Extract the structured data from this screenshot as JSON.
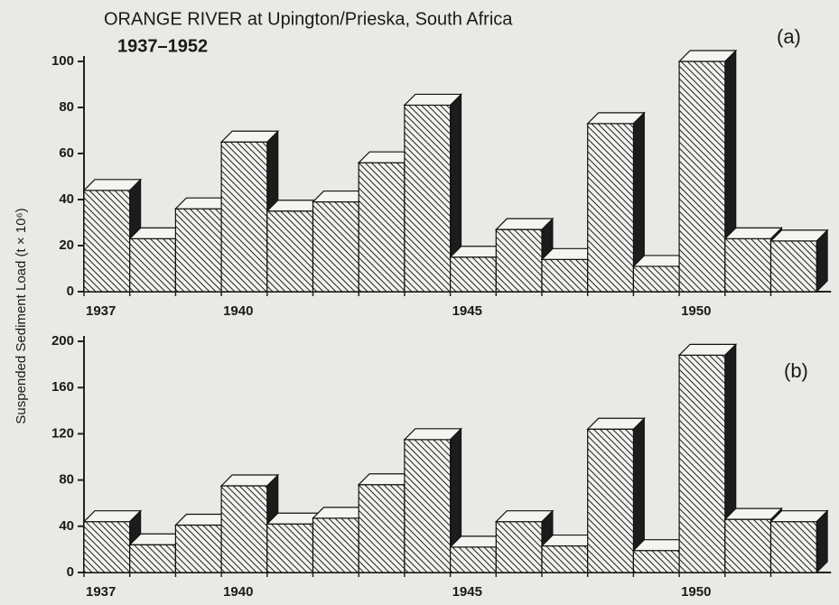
{
  "chart_data": [
    {
      "type": "bar",
      "title": "ORANGE RIVER at Upington/Prieska, South Africa",
      "subtitle": "1937–1952",
      "y_label": "Suspended Sediment Load (t × 10⁶)",
      "panel_label": "(a)",
      "categories": [
        "1937",
        null,
        null,
        "1940",
        null,
        null,
        null,
        null,
        "1945",
        null,
        null,
        null,
        null,
        "1950",
        null,
        null
      ],
      "values": [
        44,
        23,
        36,
        65,
        35,
        39,
        56,
        81,
        15,
        27,
        14,
        73,
        11,
        100,
        23,
        22
      ],
      "ylim": [
        0,
        100
      ],
      "yticks": [
        0,
        20,
        40,
        60,
        80,
        100
      ]
    },
    {
      "type": "bar",
      "panel_label": "(b)",
      "categories": [
        "1937",
        null,
        null,
        "1940",
        null,
        null,
        null,
        null,
        "1945",
        null,
        null,
        null,
        null,
        "1950",
        null,
        null
      ],
      "values": [
        44,
        24,
        41,
        75,
        42,
        47,
        76,
        115,
        22,
        44,
        23,
        124,
        19,
        188,
        46,
        44
      ],
      "ylim": [
        0,
        200
      ],
      "yticks": [
        0,
        40,
        80,
        120,
        160,
        200
      ]
    }
  ]
}
